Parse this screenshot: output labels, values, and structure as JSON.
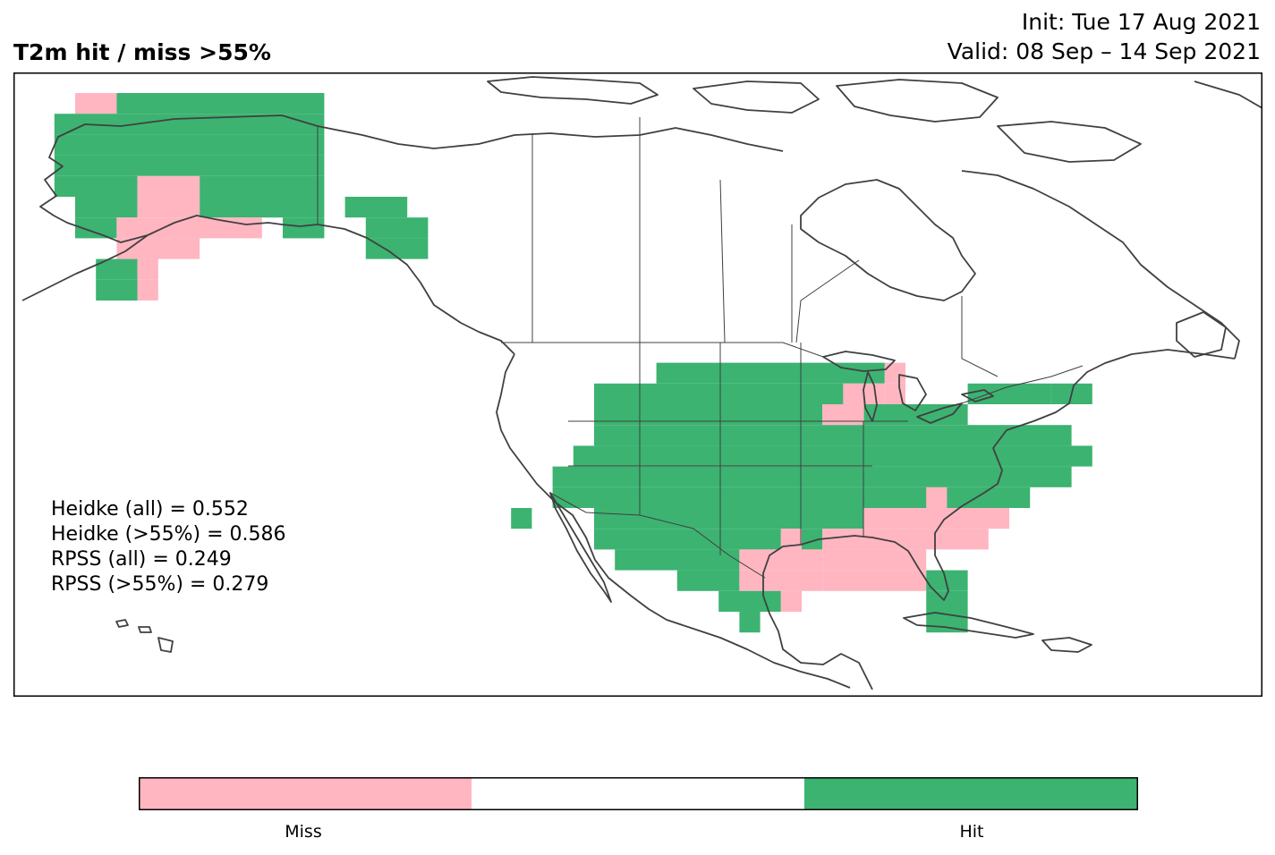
{
  "header": {
    "title": "T2m hit / miss  >55%",
    "init": "Init: Tue 17 Aug 2021",
    "valid": "Valid: 08 Sep – 14 Sep 2021"
  },
  "colors": {
    "hit": "#3cb371",
    "miss": "#ffb6c1",
    "neutral": "#ffffff",
    "coast": "#404040",
    "frame": "#000000"
  },
  "stats": [
    "Heidke (all) = 0.552",
    "Heidke (>55%) = 0.586",
    "RPSS (all) = 0.249",
    "RPSS (>55%) = 0.279"
  ],
  "legend": {
    "miss_label": "Miss",
    "hit_label": "Hit"
  },
  "icons": {
    "map": "north-america-map",
    "colorbar": "categorical-colorbar"
  }
}
